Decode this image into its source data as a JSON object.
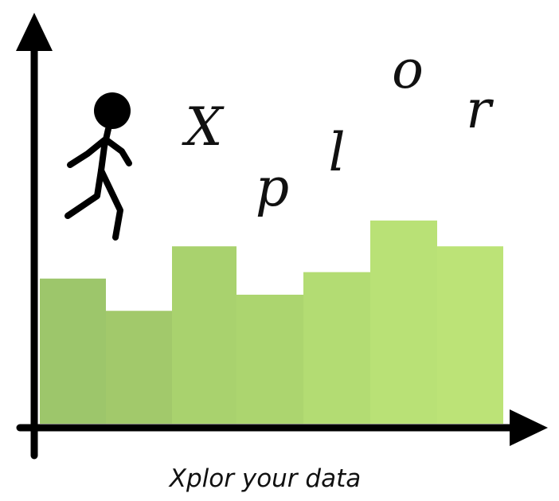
{
  "logo": {
    "letters": [
      "X",
      "p",
      "l",
      "o",
      "r"
    ],
    "tagline": "Xplor your data",
    "bar_levels": [
      0.45,
      0.35,
      0.55,
      0.4,
      0.47,
      0.63,
      0.55
    ],
    "bar_colors": [
      "#9dc66b",
      "#a2c96b",
      "#a9d26e",
      "#acd56f",
      "#b3dc73",
      "#b9e176",
      "#bce377"
    ],
    "axis_color": "#000000",
    "figure_color": "#000000"
  }
}
